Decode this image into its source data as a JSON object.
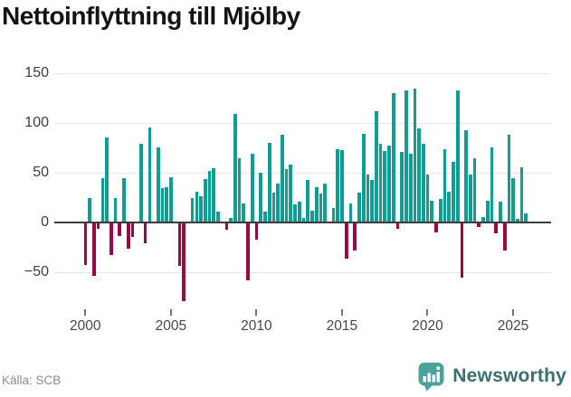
{
  "title": "Nettoinflyttning till Mjölby",
  "source_note": "Källa: SCB",
  "branding": {
    "wordmark": "Newsworthy",
    "icon": "newsworthy-bar-chart-bubble-icon",
    "icon_color": "#4BA19B",
    "text_color": "#3A7170"
  },
  "colors": {
    "positive_bar": "#0E9E94",
    "negative_bar": "#9B0845",
    "gridline": "#E7E7E7",
    "zero_line": "#3D3D3D",
    "axis_text": "#3D3D3D"
  },
  "chart_data": {
    "type": "bar",
    "title": "Nettoinflyttning till Mjölby",
    "frequency": "quarterly",
    "start_period": "2000-Q1",
    "grid": "horizontal",
    "legend": "none",
    "ylim": [
      -85,
      160
    ],
    "y_ticks": [
      {
        "label": "150",
        "value": 150
      },
      {
        "label": "100",
        "value": 100
      },
      {
        "label": "50",
        "value": 50
      },
      {
        "label": "0",
        "value": 0
      },
      {
        "label": "−50",
        "value": -50
      }
    ],
    "x_ticks": [
      {
        "label": "2000",
        "year": 2000
      },
      {
        "label": "2005",
        "year": 2005
      },
      {
        "label": "2010",
        "year": 2010
      },
      {
        "label": "2015",
        "year": 2015
      },
      {
        "label": "2020",
        "year": 2020
      },
      {
        "label": "2025",
        "year": 2025
      }
    ],
    "values": [
      -42,
      25,
      -53,
      -6,
      45,
      86,
      -32,
      25,
      -13,
      45,
      -26,
      -14,
      0,
      79,
      -21,
      96,
      0,
      76,
      35,
      36,
      46,
      0,
      -43,
      -79,
      0,
      25,
      31,
      27,
      44,
      52,
      55,
      11,
      0,
      -7,
      5,
      109,
      65,
      19,
      -58,
      69,
      -17,
      50,
      11,
      80,
      30,
      39,
      88,
      54,
      58,
      18,
      21,
      5,
      43,
      12,
      36,
      29,
      39,
      0,
      15,
      74,
      73,
      -36,
      19,
      -28,
      30,
      89,
      48,
      43,
      112,
      79,
      72,
      77,
      130,
      -6,
      71,
      133,
      69,
      135,
      95,
      79,
      48,
      22,
      -10,
      24,
      74,
      31,
      61,
      133,
      -55,
      93,
      48,
      65,
      -4,
      6,
      22,
      76,
      -11,
      21,
      -28,
      88,
      45,
      4,
      56,
      9
    ]
  }
}
